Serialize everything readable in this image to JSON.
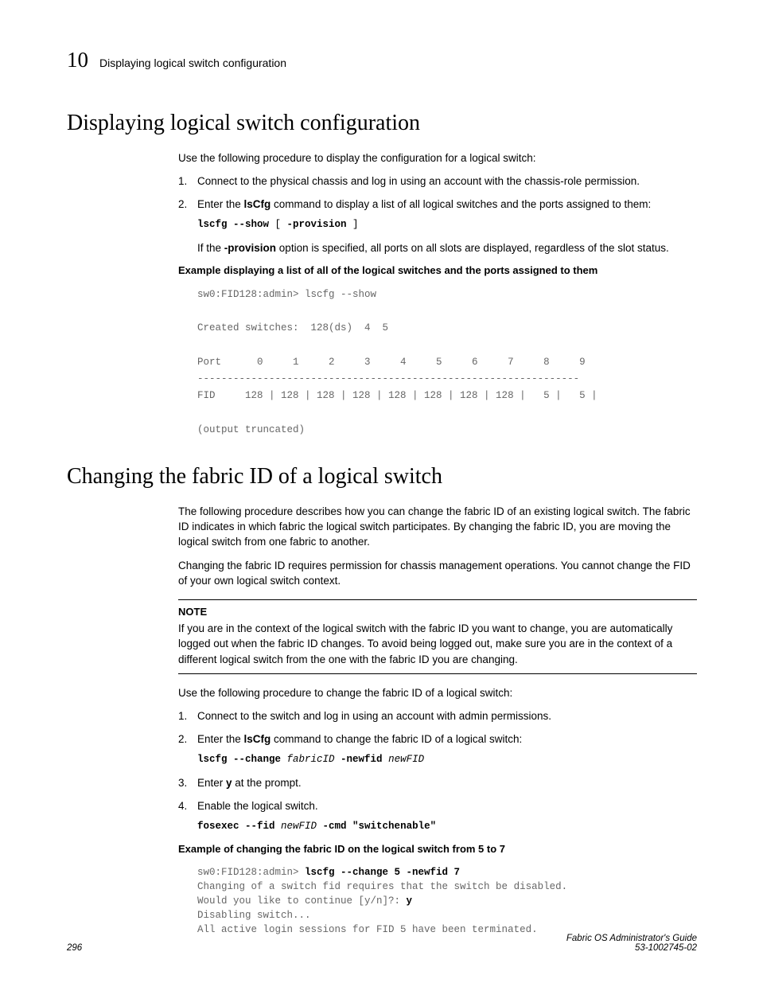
{
  "header": {
    "chapter_number": "10",
    "running_title": "Displaying logical switch configuration"
  },
  "section1": {
    "title": "Displaying logical switch configuration",
    "intro": "Use the following procedure to display the configuration for a logical switch:",
    "steps": {
      "s1": "Connect to the physical chassis and log in using an account with the chassis-role permission.",
      "s2_pre": "Enter the ",
      "s2_cmd": "lsCfg",
      "s2_post": " command to display a list of all logical switches and the ports assigned to them:",
      "s2_code_bold1": "lscfg --show",
      "s2_code_mid": " [ ",
      "s2_code_bold2": "-provision",
      "s2_code_end": " ]",
      "s2_note_pre": "If the ",
      "s2_note_bold": "-provision",
      "s2_note_post": " option is specified, all ports on all slots are displayed, regardless of the slot status."
    },
    "example_label": "Example displaying a list of all of the logical switches and the ports assigned to them",
    "terminal": "sw0:FID128:admin> lscfg --show\n\nCreated switches:  128(ds)  4  5\n\nPort      0     1     2     3     4     5     6     7     8     9\n----------------------------------------------------------------\nFID     128 | 128 | 128 | 128 | 128 | 128 | 128 | 128 |   5 |   5 |\n\n(output truncated)"
  },
  "section2": {
    "title": "Changing the fabric ID of a logical switch",
    "p1": "The following procedure describes how you can change the fabric ID of an existing logical switch. The fabric ID indicates in which fabric the logical switch participates. By changing the fabric ID, you are moving the logical switch from one fabric to another.",
    "p2": "Changing the fabric ID requires permission for chassis management operations. You cannot change the FID of your own logical switch context.",
    "note_label": "NOTE",
    "note_body": "If you are in the context of the logical switch with the fabric ID you want to change, you are automatically logged out when the fabric ID changes. To avoid being logged out, make sure you are in the context of a different logical switch from the one with the fabric ID you are changing.",
    "intro2": "Use the following procedure to change the fabric ID of a logical switch:",
    "steps": {
      "s1": "Connect to the switch and log in using an account with admin permissions.",
      "s2_pre": "Enter the ",
      "s2_cmd": "lsCfg",
      "s2_post": " command to change the fabric ID of a logical switch:",
      "s2_code_b1": "lscfg --change",
      "s2_code_i1": " fabricID ",
      "s2_code_b2": "-newfid",
      "s2_code_i2": " newFID",
      "s3_pre": "Enter ",
      "s3_bold": "y",
      "s3_post": " at the prompt.",
      "s4": "Enable the logical switch.",
      "s4_code_b1": "fosexec --fid",
      "s4_code_i1": " newFID ",
      "s4_code_b2": "-cmd \"switchenable\""
    },
    "example_label": "Example of changing the fabric ID on the logical switch from 5 to 7",
    "terminal_pre": "sw0:FID128:admin> ",
    "terminal_b1": "lscfg --change 5 -newfid 7",
    "terminal_l2": "Changing of a switch fid requires that the switch be disabled.",
    "terminal_l3a": "Would you like to continue [y/n]?: ",
    "terminal_l3b": "y",
    "terminal_l4": "Disabling switch...",
    "terminal_l5": "All active login sessions for FID 5 have been terminated."
  },
  "footer": {
    "page": "296",
    "doc_title": "Fabric OS Administrator's Guide",
    "doc_num": "53-1002745-02"
  }
}
